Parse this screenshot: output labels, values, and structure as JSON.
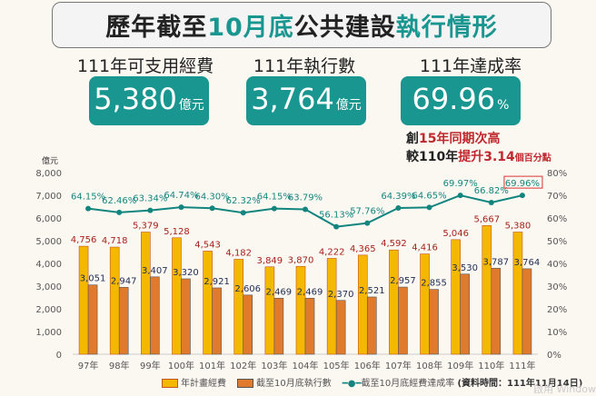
{
  "header": {
    "title_parts": [
      "歷年截至",
      "10月底",
      "公共建設",
      "執行情形"
    ]
  },
  "kpis": [
    {
      "label": "111年可支用經費",
      "value": "5,380",
      "unit": "億元"
    },
    {
      "label": "111年執行數",
      "value": "3,764",
      "unit": "億元"
    },
    {
      "label": "111年達成率",
      "value": "69.96",
      "unit": "%"
    }
  ],
  "notes": {
    "line1_a": "創",
    "line1_b": "15年同期次高",
    "line2_a": "較110年",
    "line2_b": "提升3.14",
    "line2_c": "個百分點"
  },
  "chart_data": {
    "type": "bar",
    "categories": [
      "97年",
      "98年",
      "99年",
      "100年",
      "101年",
      "102年",
      "103年",
      "104年",
      "105年",
      "106年",
      "107年",
      "108年",
      "109年",
      "110年",
      "111年"
    ],
    "series": [
      {
        "name": "年計畫經費",
        "values": [
          4756,
          4718,
          5379,
          5128,
          4543,
          4182,
          3849,
          3870,
          4222,
          4365,
          4592,
          4416,
          5046,
          5667,
          5380
        ],
        "color": "#f5b800"
      },
      {
        "name": "截至10月底執行數",
        "values": [
          3051,
          2947,
          3407,
          3320,
          2921,
          2606,
          2469,
          2469,
          2370,
          2521,
          2957,
          2855,
          3530,
          3787,
          3764
        ],
        "color": "#e07b2e"
      },
      {
        "name": "截至10月底經費達成率",
        "type": "line",
        "axis": "right",
        "values": [
          64.15,
          62.46,
          63.34,
          64.74,
          64.3,
          62.32,
          64.15,
          63.79,
          56.13,
          57.76,
          64.39,
          64.65,
          69.97,
          66.82,
          69.96
        ],
        "color": "#13857f"
      }
    ],
    "ylabel": "億元",
    "ylim": [
      0,
      8000
    ],
    "yticks": [
      "0",
      "1,000",
      "2,000",
      "3,000",
      "4,000",
      "5,000",
      "6,000",
      "7,000",
      "8,000"
    ],
    "y2lim": [
      0,
      80
    ],
    "y2ticks": [
      "0%",
      "10%",
      "20%",
      "30%",
      "40%",
      "50%",
      "60%",
      "70%",
      "80%"
    ],
    "grid": false,
    "legend": "bottom",
    "source_note": "(資料時間：111年11月14日)"
  },
  "watermark": "啟用 Window"
}
